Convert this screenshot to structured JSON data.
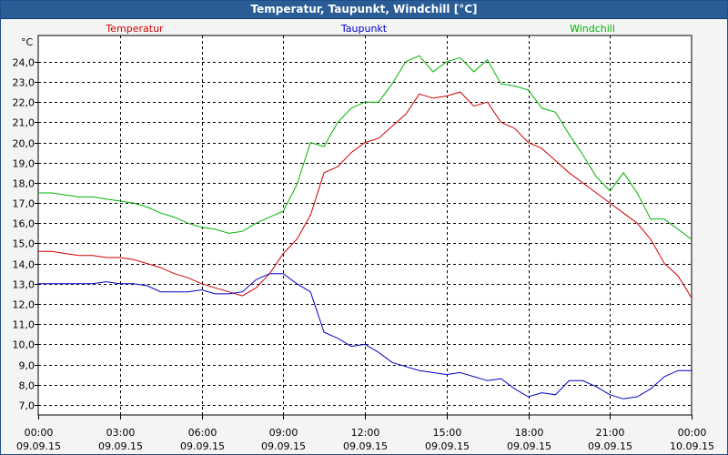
{
  "window": {
    "title": "Temperatur, Taupunkt, Windchill [°C]"
  },
  "chart_data": {
    "type": "line",
    "title": "Temperatur, Taupunkt, Windchill [°C]",
    "y_unit": "°C",
    "ylim": [
      6.5,
      25.3
    ],
    "xlim": [
      0,
      24
    ],
    "y_ticks": [
      7.0,
      8.0,
      9.0,
      10.0,
      11.0,
      12.0,
      13.0,
      14.0,
      15.0,
      16.0,
      17.0,
      18.0,
      19.0,
      20.0,
      21.0,
      22.0,
      23.0,
      24.0
    ],
    "y_tick_labels": [
      "7,0",
      "8,0",
      "9,0",
      "10,0",
      "11,0",
      "12,0",
      "13,0",
      "14,0",
      "15,0",
      "16,0",
      "17,0",
      "18,0",
      "19,0",
      "20,0",
      "21,0",
      "22,0",
      "23,0",
      "24,0"
    ],
    "x_ticks": [
      0,
      3,
      6,
      9,
      12,
      15,
      18,
      21,
      24
    ],
    "x_tick_labels": [
      {
        "time": "00:00",
        "date": "09.09.15"
      },
      {
        "time": "03:00",
        "date": "09.09.15"
      },
      {
        "time": "06:00",
        "date": "09.09.15"
      },
      {
        "time": "09:00",
        "date": "09.09.15"
      },
      {
        "time": "12:00",
        "date": "09.09.15"
      },
      {
        "time": "15:00",
        "date": "09.09.15"
      },
      {
        "time": "18:00",
        "date": "09.09.15"
      },
      {
        "time": "21:00",
        "date": "09.09.15"
      },
      {
        "time": "00:00",
        "date": "10.09.15"
      }
    ],
    "grid": true,
    "series": [
      {
        "name": "Temperatur",
        "color": "#d00000",
        "x": [
          0,
          0.5,
          1,
          1.5,
          2,
          2.5,
          3,
          3.5,
          4,
          4.5,
          5,
          5.5,
          6,
          6.5,
          7,
          7.5,
          8,
          8.5,
          9,
          9.5,
          10,
          10.5,
          11,
          11.5,
          12,
          12.5,
          13,
          13.5,
          14,
          14.5,
          15,
          15.5,
          16,
          16.5,
          17,
          17.5,
          18,
          18.5,
          19,
          19.5,
          20,
          20.5,
          21,
          21.5,
          22,
          22.5,
          23,
          23.5,
          24
        ],
        "values": [
          14.6,
          14.6,
          14.5,
          14.4,
          14.4,
          14.3,
          14.3,
          14.2,
          14.0,
          13.8,
          13.5,
          13.3,
          13.0,
          12.8,
          12.6,
          12.4,
          12.8,
          13.5,
          14.5,
          15.2,
          16.4,
          18.5,
          18.8,
          19.5,
          20.0,
          20.2,
          20.8,
          21.4,
          22.4,
          22.2,
          22.3,
          22.5,
          21.8,
          22.0,
          21.0,
          20.7,
          20.0,
          19.7,
          19.1,
          18.5,
          18.0,
          17.5,
          17.0,
          16.5,
          16.0,
          15.2,
          14.0,
          13.4,
          12.3
        ]
      },
      {
        "name": "Taupunkt",
        "color": "#0000c8",
        "x": [
          0,
          0.5,
          1,
          1.5,
          2,
          2.5,
          3,
          3.5,
          4,
          4.5,
          5,
          5.5,
          6,
          6.5,
          7,
          7.5,
          8,
          8.5,
          9,
          9.5,
          10,
          10.5,
          11,
          11.5,
          12,
          12.5,
          13,
          13.5,
          14,
          14.5,
          15,
          15.5,
          16,
          16.5,
          17,
          17.5,
          18,
          18.5,
          19,
          19.5,
          20,
          20.5,
          21,
          21.5,
          22,
          22.5,
          23,
          23.5,
          24
        ],
        "values": [
          13.0,
          13.0,
          13.0,
          13.0,
          13.0,
          13.1,
          13.0,
          13.0,
          12.9,
          12.6,
          12.6,
          12.6,
          12.7,
          12.5,
          12.5,
          12.6,
          13.2,
          13.5,
          13.5,
          13.0,
          12.6,
          10.6,
          10.3,
          9.9,
          10.0,
          9.6,
          9.1,
          8.9,
          8.7,
          8.6,
          8.5,
          8.6,
          8.4,
          8.2,
          8.3,
          7.8,
          7.4,
          7.6,
          7.5,
          8.2,
          8.2,
          7.9,
          7.5,
          7.3,
          7.4,
          7.8,
          8.4,
          8.7,
          8.7
        ]
      },
      {
        "name": "Windchill",
        "color": "#00b400",
        "x": [
          0,
          0.5,
          1,
          1.5,
          2,
          2.5,
          3,
          3.5,
          4,
          4.5,
          5,
          5.5,
          6,
          6.5,
          7,
          7.5,
          8,
          8.5,
          9,
          9.5,
          10,
          10.5,
          11,
          11.5,
          12,
          12.5,
          13,
          13.5,
          14,
          14.5,
          15,
          15.5,
          16,
          16.5,
          17,
          17.5,
          18,
          18.5,
          19,
          19.5,
          20,
          20.5,
          21,
          21.5,
          22,
          22.5,
          23,
          23.5,
          24
        ],
        "values": [
          17.5,
          17.5,
          17.4,
          17.3,
          17.3,
          17.2,
          17.1,
          17.0,
          16.8,
          16.5,
          16.3,
          16.0,
          15.8,
          15.7,
          15.5,
          15.6,
          16.0,
          16.3,
          16.6,
          17.9,
          20.0,
          19.8,
          21.0,
          21.7,
          22.0,
          22.0,
          22.9,
          24.0,
          24.3,
          23.5,
          24.0,
          24.2,
          23.5,
          24.1,
          22.9,
          22.8,
          22.6,
          21.7,
          21.5,
          20.4,
          19.4,
          18.3,
          17.6,
          18.5,
          17.5,
          16.2,
          16.2,
          15.7,
          15.2
        ]
      }
    ]
  }
}
